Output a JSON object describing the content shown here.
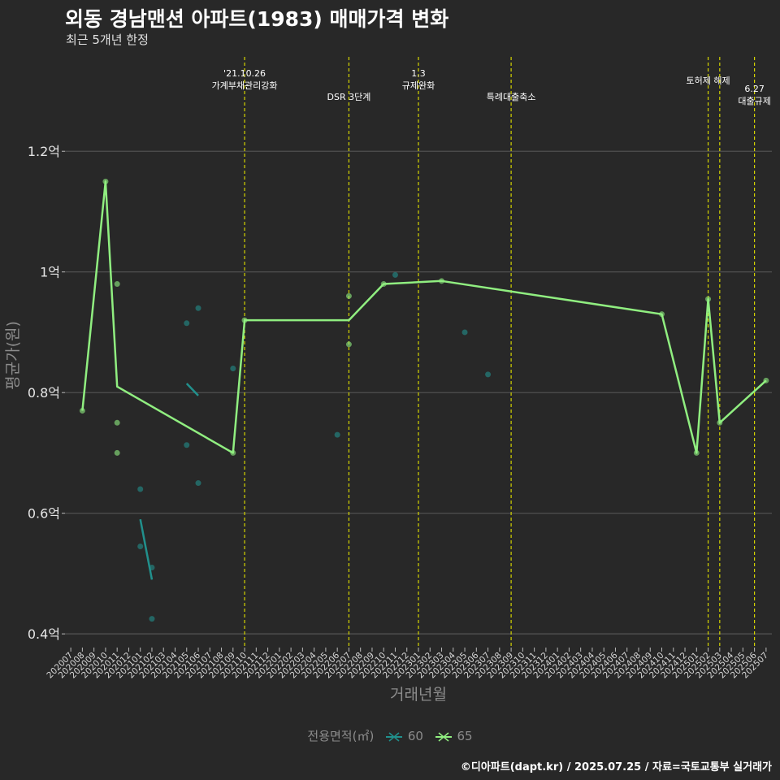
{
  "header": {
    "title": "외동 경남맨션 아파트(1983) 매매가격 변화",
    "subtitle": "최근 5개년 한정"
  },
  "caption": "©디아파트(dapt.kr) / 2025.07.25 / 자료=국토교통부 실거래가",
  "colors": {
    "background": "#282828",
    "grid": "#555555",
    "event_line": "#d4d400",
    "series_60": "#21908c",
    "series_65": "#90ee80"
  },
  "chart_data": {
    "type": "line",
    "xlabel": "거래년월",
    "ylabel": "평균가(원)",
    "ylim": [
      0.38,
      1.37
    ],
    "yticks": [
      0.4,
      0.6,
      0.8,
      1.0,
      1.2
    ],
    "ytick_labels": [
      "0.4억",
      "0.6억",
      "0.8억",
      "1억",
      "1.2억"
    ],
    "categories": [
      "202007",
      "202008",
      "202009",
      "202010",
      "202011",
      "202012",
      "202101",
      "202102",
      "202103",
      "202104",
      "202105",
      "202106",
      "202107",
      "202108",
      "202109",
      "202110",
      "202111",
      "202112",
      "202201",
      "202202",
      "202203",
      "202204",
      "202205",
      "202206",
      "202207",
      "202208",
      "202209",
      "202210",
      "202211",
      "202212",
      "202301",
      "202302",
      "202303",
      "202304",
      "202305",
      "202306",
      "202307",
      "202308",
      "202309",
      "202310",
      "202311",
      "202312",
      "202401",
      "202402",
      "202403",
      "202404",
      "202405",
      "202406",
      "202407",
      "202408",
      "202409",
      "202410",
      "202411",
      "202412",
      "202501",
      "202502",
      "202503",
      "202504",
      "202505",
      "202506",
      "202507"
    ],
    "events": [
      {
        "month": "202110",
        "label": [
          "'21.10.26",
          "가계부채관리강화"
        ],
        "level": 0
      },
      {
        "month": "202207",
        "label": [
          "DSR 3단계"
        ],
        "level": 2
      },
      {
        "month": "202301",
        "label": [
          "1.3",
          "규제완화"
        ],
        "level": 0
      },
      {
        "month": "202309",
        "label": [
          "특례대출축소"
        ],
        "level": 2
      },
      {
        "month": "202502",
        "label": [
          "토허제 해제"
        ],
        "level": 1
      },
      {
        "month": "202503",
        "label": [],
        "level": 1
      },
      {
        "month": "202506",
        "label": [
          "6.27",
          "대출규제"
        ],
        "level": 3
      }
    ],
    "series": [
      {
        "name": "60",
        "line": [
          {
            "x": "202101",
            "y": 0.59
          },
          {
            "x": "202102",
            "y": 0.49
          },
          {
            "x": "202105",
            "y": 0.815
          },
          {
            "x": "202106",
            "y": 0.795
          }
        ],
        "points": [
          {
            "x": "202101",
            "y": 0.64
          },
          {
            "x": "202101",
            "y": 0.545
          },
          {
            "x": "202102",
            "y": 0.51
          },
          {
            "x": "202102",
            "y": 0.425
          },
          {
            "x": "202105",
            "y": 0.915
          },
          {
            "x": "202105",
            "y": 0.713
          },
          {
            "x": "202106",
            "y": 0.94
          },
          {
            "x": "202106",
            "y": 0.65
          },
          {
            "x": "202109",
            "y": 0.84
          },
          {
            "x": "202206",
            "y": 0.73
          },
          {
            "x": "202211",
            "y": 0.995
          },
          {
            "x": "202305",
            "y": 0.9
          },
          {
            "x": "202307",
            "y": 0.83
          }
        ]
      },
      {
        "name": "65",
        "line": [
          {
            "x": "202008",
            "y": 0.77
          },
          {
            "x": "202010",
            "y": 1.15
          },
          {
            "x": "202011",
            "y": 0.81
          },
          {
            "x": "202109",
            "y": 0.7
          },
          {
            "x": "202110",
            "y": 0.92
          },
          {
            "x": "202207",
            "y": 0.92
          },
          {
            "x": "202210",
            "y": 0.98
          },
          {
            "x": "202303",
            "y": 0.985
          },
          {
            "x": "202410",
            "y": 0.93
          },
          {
            "x": "202501",
            "y": 0.7
          },
          {
            "x": "202502",
            "y": 0.955
          },
          {
            "x": "202503",
            "y": 0.75
          },
          {
            "x": "202507",
            "y": 0.82
          }
        ],
        "points": [
          {
            "x": "202008",
            "y": 0.77
          },
          {
            "x": "202010",
            "y": 1.15
          },
          {
            "x": "202011",
            "y": 0.98
          },
          {
            "x": "202011",
            "y": 0.75
          },
          {
            "x": "202011",
            "y": 0.7
          },
          {
            "x": "202109",
            "y": 0.7
          },
          {
            "x": "202110",
            "y": 0.92
          },
          {
            "x": "202207",
            "y": 0.96
          },
          {
            "x": "202207",
            "y": 0.88
          },
          {
            "x": "202210",
            "y": 0.98
          },
          {
            "x": "202303",
            "y": 0.985
          },
          {
            "x": "202410",
            "y": 0.93
          },
          {
            "x": "202501",
            "y": 0.7
          },
          {
            "x": "202502",
            "y": 0.955
          },
          {
            "x": "202503",
            "y": 0.75
          },
          {
            "x": "202507",
            "y": 0.82
          }
        ]
      }
    ]
  },
  "legend": {
    "title": "전용면적(㎡)",
    "items": [
      "60",
      "65"
    ]
  }
}
